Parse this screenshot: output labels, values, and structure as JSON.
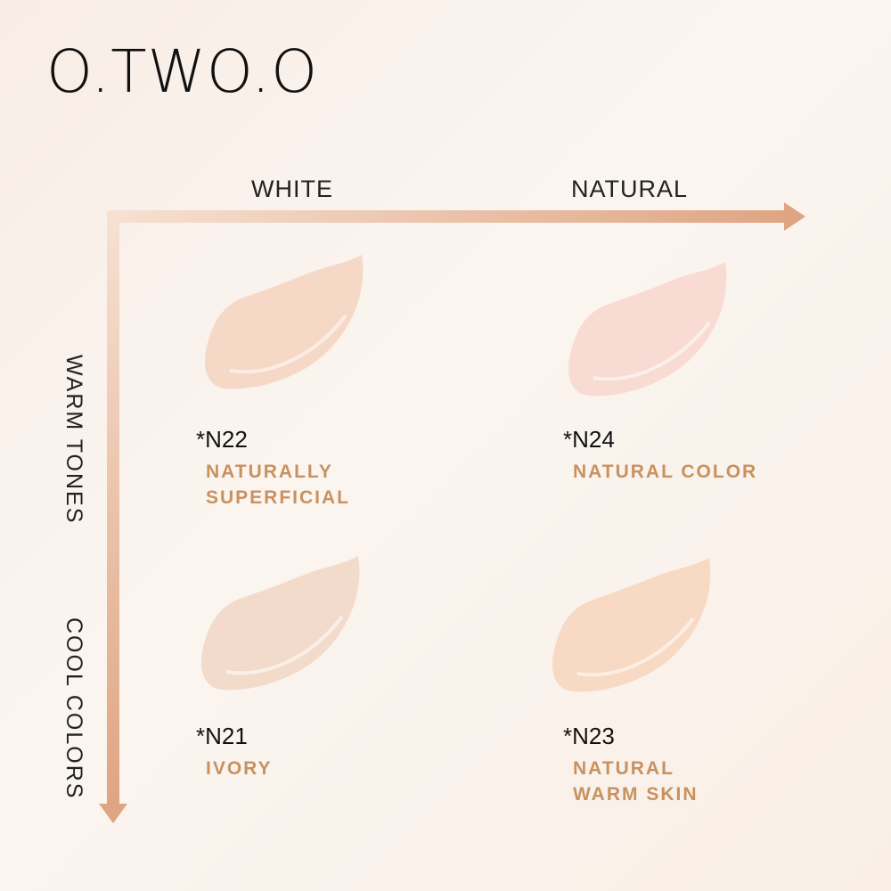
{
  "brand": "O.TWO.O",
  "axes": {
    "x_labels": [
      "WHITE",
      "NATURAL"
    ],
    "y_labels": [
      "WARM TONES",
      "COOL COLORS"
    ],
    "arrow_color_start": "#f6e1d2",
    "arrow_color_end": "#dfa583"
  },
  "shades": [
    {
      "code": "*N22",
      "name_lines": [
        "NATURALLY",
        "SUPERFICIAL"
      ],
      "color": "#f6d8c6"
    },
    {
      "code": "*N24",
      "name_lines": [
        "NATURAL COLOR"
      ],
      "color": "#f8dbd2"
    },
    {
      "code": "*N21",
      "name_lines": [
        "IVORY"
      ],
      "color": "#f3dbcb"
    },
    {
      "code": "*N23",
      "name_lines": [
        "NATURAL",
        "WARM SKIN"
      ],
      "color": "#f8d9c4"
    }
  ],
  "label_color": "#c8915f"
}
